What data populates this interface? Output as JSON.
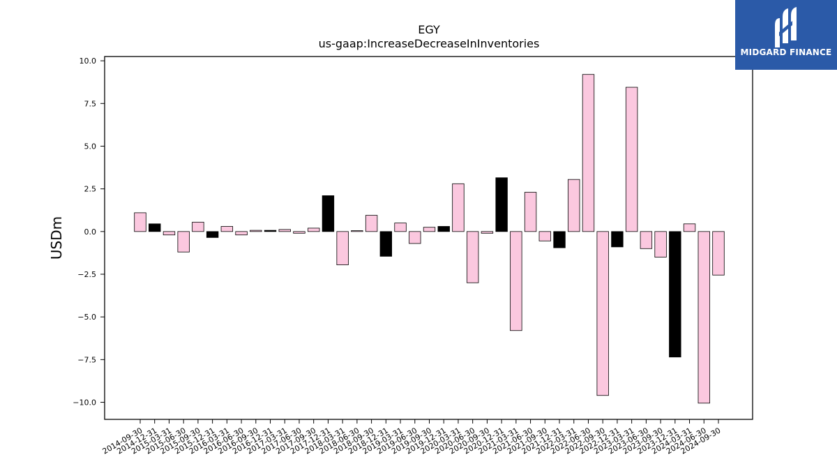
{
  "brand": {
    "name": "MIDGARD FINANCE",
    "background": "#2b5aa8",
    "icon": "midgard-m-logo-icon"
  },
  "chart_data": {
    "type": "bar",
    "title": "EGY",
    "subtitle": "us-gaap:IncreaseDecreaseInInventories",
    "xlabel": "",
    "ylabel": "USDm",
    "ylim": [
      -11.0,
      10.25
    ],
    "yticks": [
      10.0,
      7.5,
      5.0,
      2.5,
      0.0,
      -2.5,
      -5.0,
      -7.5,
      -10.0
    ],
    "ytick_labels": [
      "10.0",
      "7.5",
      "5.0",
      "2.5",
      "0.0",
      "−2.5",
      "−5.0",
      "−7.5",
      "−10.0"
    ],
    "grid": false,
    "legend": "none",
    "colors": {
      "q4": "#000000",
      "other": "#fbc8df",
      "edge": "#000000"
    },
    "categories": [
      "2014-09-30",
      "2014-12-31",
      "2015-03-31",
      "2015-06-30",
      "2015-09-30",
      "2015-12-31",
      "2016-03-31",
      "2016-06-30",
      "2016-09-30",
      "2016-12-31",
      "2017-03-31",
      "2017-06-30",
      "2017-09-30",
      "2017-12-31",
      "2018-03-31",
      "2018-06-30",
      "2018-09-30",
      "2018-12-31",
      "2019-03-31",
      "2019-06-30",
      "2019-09-30",
      "2019-12-31",
      "2020-03-31",
      "2020-06-30",
      "2020-09-30",
      "2020-12-31",
      "2021-03-31",
      "2021-06-30",
      "2021-09-30",
      "2021-12-31",
      "2022-03-31",
      "2022-06-30",
      "2022-09-30",
      "2022-12-31",
      "2023-03-31",
      "2023-06-30",
      "2023-09-30",
      "2023-12-31",
      "2024-03-31",
      "2024-06-30",
      "2024-09-30"
    ],
    "values": [
      1.1,
      0.45,
      -0.2,
      -1.2,
      0.55,
      -0.35,
      0.3,
      -0.2,
      0.07,
      0.07,
      0.12,
      -0.1,
      0.2,
      2.1,
      -1.95,
      0.05,
      0.95,
      -1.45,
      0.5,
      -0.7,
      0.25,
      0.3,
      2.8,
      -3.0,
      -0.1,
      3.15,
      -5.8,
      2.3,
      -0.55,
      -0.95,
      3.05,
      9.2,
      -9.6,
      -0.9,
      8.45,
      -1.0,
      -1.5,
      -7.35,
      0.45,
      -10.05,
      -2.55
    ]
  }
}
